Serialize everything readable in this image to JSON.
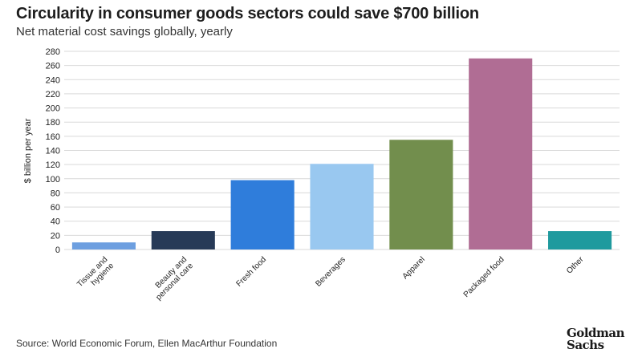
{
  "header": {
    "title": "Circularity in consumer goods sectors could save $700 billion",
    "subtitle": "Net material cost savings globally, yearly"
  },
  "footer": {
    "source": "Source: World Economic Forum, Ellen MacArthur Foundation",
    "logo_line1": "Goldman",
    "logo_line2": "Sachs"
  },
  "chart_data": {
    "type": "bar",
    "title": "Circularity in consumer goods sectors could save $700 billion",
    "subtitle": "Net material cost savings globally, yearly",
    "xlabel": "",
    "ylabel": "$ billion per year",
    "ylim": [
      0,
      280
    ],
    "yticks": [
      0,
      20,
      40,
      60,
      80,
      100,
      120,
      140,
      160,
      180,
      200,
      220,
      240,
      260,
      280
    ],
    "grid": true,
    "legend": "none",
    "categories": [
      [
        "Tissue and",
        "hygiene"
      ],
      [
        "Beauty and",
        "personal care"
      ],
      [
        "Fresh food"
      ],
      [
        "Beverages"
      ],
      [
        "Apparel"
      ],
      [
        "Packaged food"
      ],
      [
        "Other"
      ]
    ],
    "values": [
      10,
      26,
      98,
      121,
      155,
      270,
      26
    ],
    "colors": [
      "#6d9fe0",
      "#273a57",
      "#2f7ddb",
      "#99c8f0",
      "#728e4d",
      "#b06d94",
      "#1f9a9e"
    ]
  }
}
